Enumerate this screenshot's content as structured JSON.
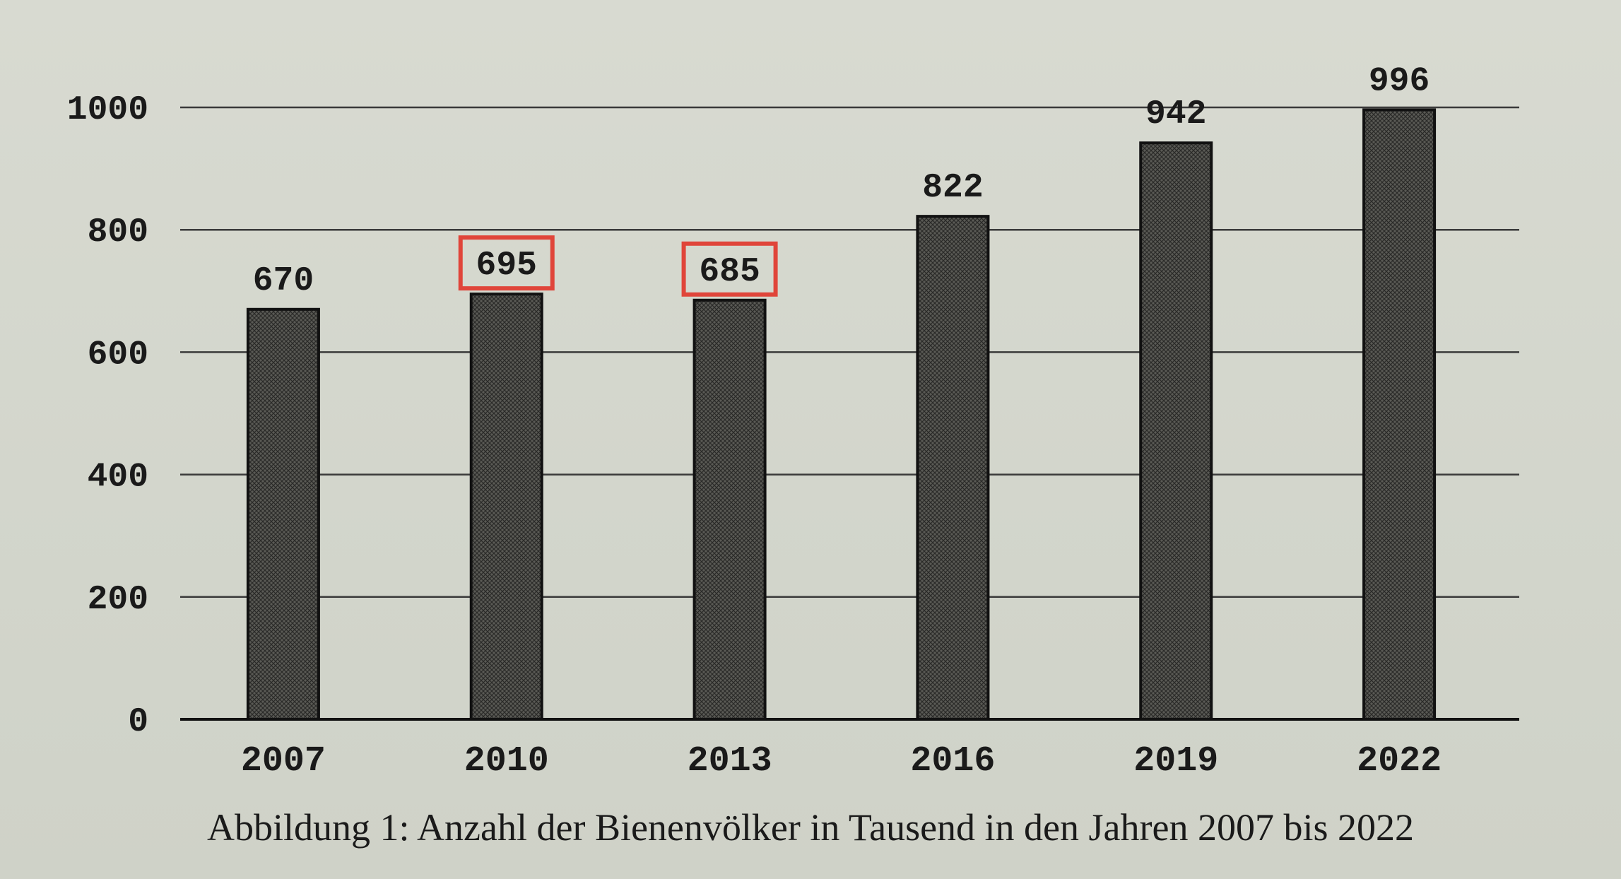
{
  "chart_data": {
    "type": "bar",
    "categories": [
      "2007",
      "2010",
      "2013",
      "2016",
      "2019",
      "2022"
    ],
    "values": [
      670,
      695,
      685,
      822,
      942,
      996
    ],
    "value_labels": [
      "670",
      "695",
      "685",
      "822",
      "942",
      "996"
    ],
    "highlighted": [
      "2010",
      "2013"
    ],
    "ylim": [
      0,
      1000
    ],
    "yticks": [
      0,
      200,
      400,
      600,
      800,
      1000
    ],
    "ytick_labels": [
      "0",
      "200",
      "400",
      "600",
      "800",
      "1000"
    ],
    "grid": true,
    "legend": "none",
    "xlabel": "",
    "ylabel": "",
    "caption": "Abbildung 1: Anzahl der Bienenvölker in Tausend in den Jahren 2007 bis 2022"
  },
  "colors": {
    "bar_fill": "#4a4a45",
    "bar_stroke": "#111111",
    "grid": "#3a3a3a",
    "highlight": "#e0453a",
    "text": "#1a1a1a"
  }
}
